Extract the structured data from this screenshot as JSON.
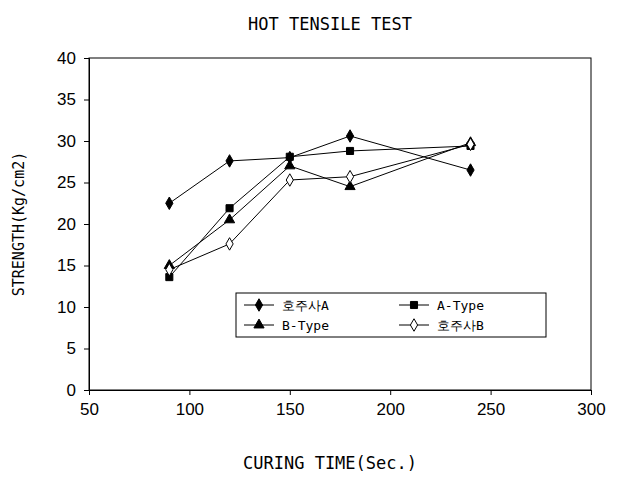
{
  "chart_data": {
    "type": "line",
    "title": "HOT TENSILE TEST",
    "x_label": "CURING TIME(Sec.)",
    "y_label": "STRENGTH(Kg/cm2)",
    "x": [
      90,
      120,
      150,
      180,
      240
    ],
    "series": [
      {
        "name": "호주사A",
        "color": "#000000",
        "marker": "diamond",
        "values": [
          22.5,
          27.6,
          28.0,
          30.6,
          26.5
        ]
      },
      {
        "name": "A-Type",
        "color": "#000000",
        "marker": "square",
        "values": [
          13.6,
          21.9,
          28.1,
          28.8,
          29.4
        ]
      },
      {
        "name": "B-Type",
        "color": "#000000",
        "marker": "triangle",
        "values": [
          15.0,
          20.5,
          27.0,
          24.5,
          29.8
        ]
      },
      {
        "name": "호주사B",
        "color": "#000000",
        "marker": "diamond-open",
        "values": [
          14.5,
          17.6,
          25.3,
          25.7,
          29.6
        ]
      }
    ],
    "xlim": [
      50,
      300
    ],
    "xticks": [
      50,
      100,
      150,
      200,
      250,
      300
    ],
    "ylim": [
      0,
      40
    ],
    "yticks": [
      0,
      5,
      10,
      15,
      20,
      25,
      30,
      35,
      40
    ],
    "grid": false,
    "legend": "lower right"
  }
}
